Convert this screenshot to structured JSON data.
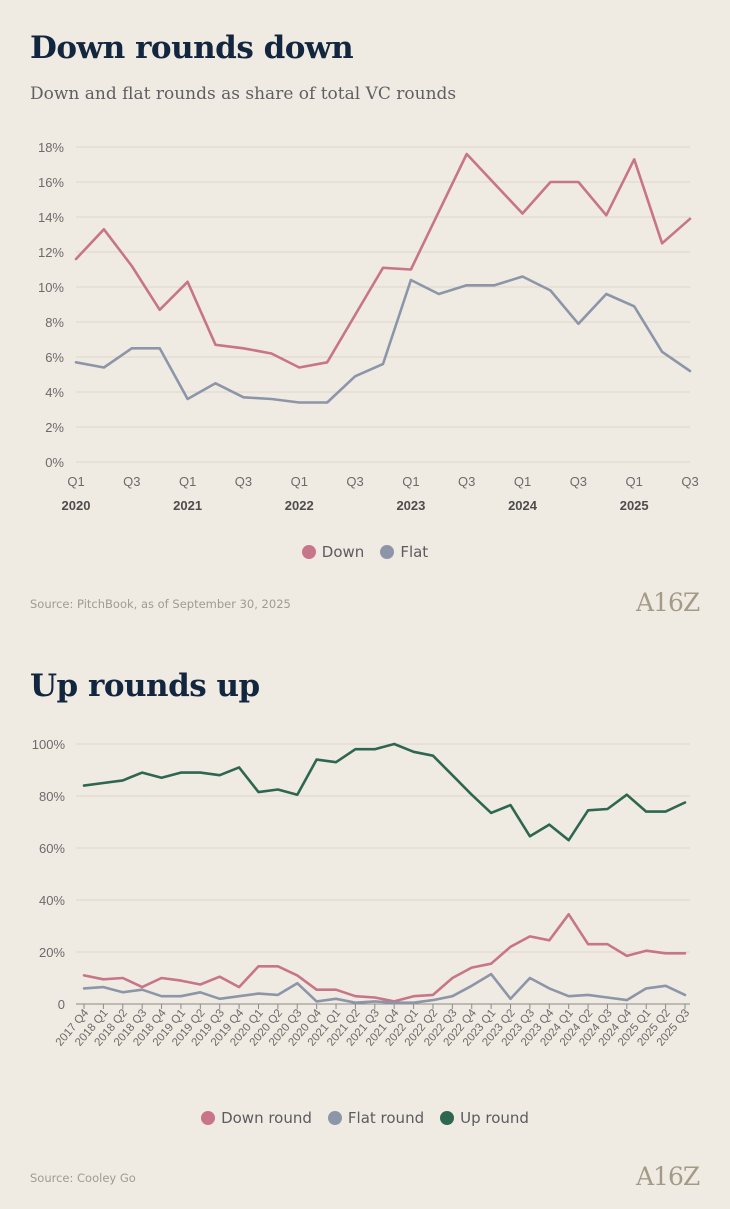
{
  "colors": {
    "down": "#c77589",
    "flat": "#8c96a8",
    "up": "#2f6650",
    "grid": "#ddd6c9",
    "tick": "#6b6b6b",
    "year": "#4d4d4d"
  },
  "logo": "A16Z",
  "chart1": {
    "title": "Down rounds down",
    "subtitle": "Down and flat rounds as share of total VC rounds",
    "source": "Source: PitchBook, as of September 30, 2025",
    "legend": [
      {
        "label": "Down",
        "color": "#c77589"
      },
      {
        "label": "Flat",
        "color": "#8c96a8"
      }
    ],
    "chart_data": {
      "type": "line",
      "title": "Down rounds down",
      "ylim": [
        0,
        18
      ],
      "yticks": [
        "0%",
        "2%",
        "4%",
        "6%",
        "8%",
        "10%",
        "12%",
        "14%",
        "16%",
        "18%"
      ],
      "x": [
        "2020 Q1",
        "2020 Q2",
        "2020 Q3",
        "2020 Q4",
        "2021 Q1",
        "2021 Q2",
        "2021 Q3",
        "2021 Q4",
        "2022 Q1",
        "2022 Q2",
        "2022 Q3",
        "2022 Q4",
        "2023 Q1",
        "2023 Q2",
        "2023 Q3",
        "2023 Q4",
        "2024 Q1",
        "2024 Q2",
        "2024 Q3",
        "2024 Q4",
        "2025 Q1",
        "2025 Q2",
        "2025 Q3"
      ],
      "xticks": [
        {
          "i": 0,
          "q": "Q1",
          "year": "2020"
        },
        {
          "i": 2,
          "q": "Q3",
          "year": ""
        },
        {
          "i": 4,
          "q": "Q1",
          "year": "2021"
        },
        {
          "i": 6,
          "q": "Q3",
          "year": ""
        },
        {
          "i": 8,
          "q": "Q1",
          "year": "2022"
        },
        {
          "i": 10,
          "q": "Q3",
          "year": ""
        },
        {
          "i": 12,
          "q": "Q1",
          "year": "2023"
        },
        {
          "i": 14,
          "q": "Q3",
          "year": ""
        },
        {
          "i": 16,
          "q": "Q1",
          "year": "2024"
        },
        {
          "i": 18,
          "q": "Q3",
          "year": ""
        },
        {
          "i": 20,
          "q": "Q1",
          "year": "2025"
        },
        {
          "i": 22,
          "q": "Q3",
          "year": ""
        }
      ],
      "series": [
        {
          "name": "Down",
          "color": "#c77589",
          "values": [
            11.6,
            13.3,
            11.2,
            8.7,
            10.3,
            6.7,
            6.5,
            6.2,
            5.4,
            5.7,
            8.4,
            11.1,
            11.0,
            14.3,
            17.6,
            15.9,
            14.2,
            16.0,
            16.0,
            14.1,
            17.3,
            12.5,
            13.9
          ]
        },
        {
          "name": "Flat",
          "color": "#8c96a8",
          "values": [
            5.7,
            5.4,
            6.5,
            6.5,
            3.6,
            4.5,
            3.7,
            3.6,
            3.4,
            3.4,
            4.9,
            5.6,
            10.4,
            9.6,
            10.1,
            10.1,
            10.6,
            9.8,
            7.9,
            9.6,
            8.9,
            6.3,
            5.2
          ]
        }
      ]
    }
  },
  "chart2": {
    "title": "Up rounds up",
    "source": "Source: Cooley Go",
    "legend": [
      {
        "label": "Down round",
        "color": "#c77589"
      },
      {
        "label": "Flat round",
        "color": "#8c96a8"
      },
      {
        "label": "Up round",
        "color": "#2f6650"
      }
    ],
    "chart_data": {
      "type": "line",
      "title": "Up rounds up",
      "ylim": [
        0,
        100
      ],
      "yticks": [
        "0",
        "20%",
        "40%",
        "60%",
        "80%",
        "100%"
      ],
      "categories": [
        "2017 Q4",
        "2018 Q1",
        "2018 Q2",
        "2018 Q3",
        "2018 Q4",
        "2019 Q1",
        "2019 Q2",
        "2019 Q3",
        "2019 Q4",
        "2020 Q1",
        "2020 Q2",
        "2020 Q3",
        "2020 Q4",
        "2021 Q1",
        "2021 Q2",
        "2021 Q3",
        "2021 Q4",
        "2022 Q1",
        "2022 Q2",
        "2022 Q3",
        "2022 Q4",
        "2023 Q1",
        "2023 Q2",
        "2023 Q3",
        "2023 Q4",
        "2024 Q1",
        "2024 Q2",
        "2024 Q3",
        "2024 Q4",
        "2025 Q1",
        "2025 Q2",
        "2025 Q3"
      ],
      "series": [
        {
          "name": "Down round",
          "color": "#c77589",
          "values": [
            11,
            9.5,
            10,
            6.5,
            10,
            9,
            7.5,
            10.5,
            6.5,
            14.5,
            14.5,
            11,
            5.5,
            5.5,
            3,
            2.5,
            1,
            3,
            3.5,
            10,
            14,
            15.5,
            22,
            26,
            24.5,
            34.5,
            23,
            23,
            18.5,
            20.5,
            19.5,
            19.5
          ]
        },
        {
          "name": "Flat round",
          "color": "#8c96a8",
          "values": [
            6,
            6.5,
            4.5,
            5.5,
            3,
            3,
            4.5,
            2,
            3,
            4,
            3.5,
            8,
            1,
            2,
            0.5,
            1,
            0.5,
            0.5,
            1.5,
            3,
            7,
            11.5,
            2,
            10,
            6,
            3,
            3.5,
            2.5,
            1.5,
            6,
            7,
            3.5
          ]
        },
        {
          "name": "Up round",
          "color": "#2f6650",
          "values": [
            84,
            85,
            86,
            89,
            87,
            89,
            89,
            88,
            91,
            81.5,
            82.5,
            80.5,
            94,
            93,
            98,
            98,
            100,
            97,
            95.5,
            88,
            80.5,
            73.5,
            76.5,
            64.5,
            69,
            63,
            74.5,
            75,
            80.5,
            74,
            74,
            77.5
          ]
        }
      ]
    }
  }
}
